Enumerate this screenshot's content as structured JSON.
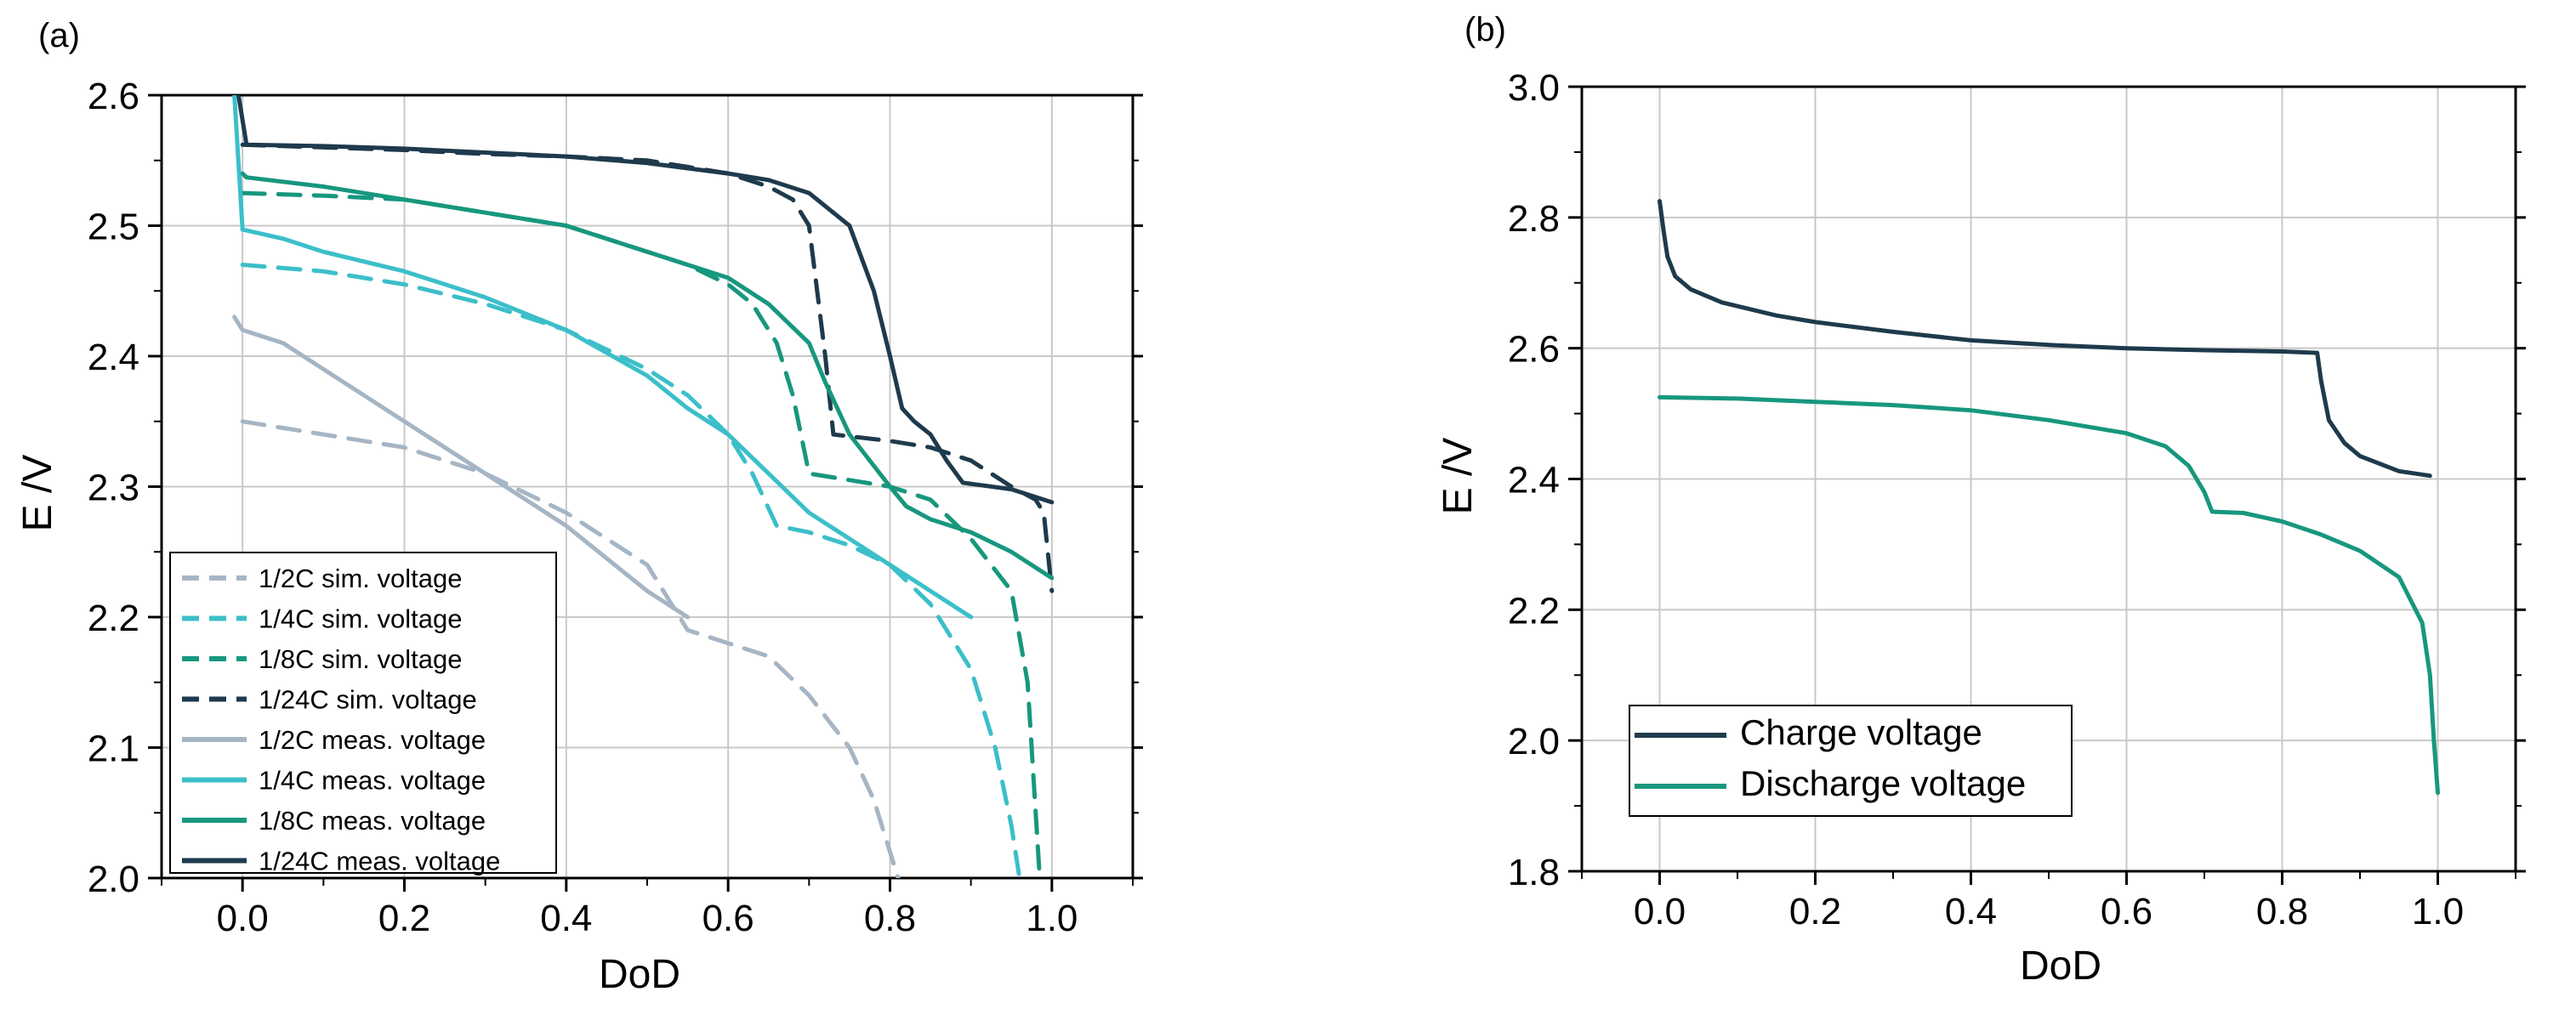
{
  "chart_data": [
    {
      "type": "line",
      "panel_label": "(a)",
      "xlabel": "DoD",
      "ylabel": "E /V",
      "xlim": [
        -0.1,
        1.1
      ],
      "ylim": [
        2.0,
        2.6
      ],
      "xticks": [
        0.0,
        0.2,
        0.4,
        0.6,
        0.8,
        1.0
      ],
      "xtick_labels": [
        "0.0",
        "0.2",
        "0.4",
        "0.6",
        "0.8",
        "1.0"
      ],
      "yticks": [
        2.0,
        2.1,
        2.2,
        2.3,
        2.4,
        2.5,
        2.6
      ],
      "ytick_labels": [
        "2.0",
        "2.1",
        "2.2",
        "2.3",
        "2.4",
        "2.5",
        "2.6"
      ],
      "grid": true,
      "legend_position": "bottom-left",
      "series": [
        {
          "name": "1/2C sim. voltage",
          "color": "#a6b5c4",
          "dash": true,
          "points": [
            [
              0.0,
              2.35
            ],
            [
              0.1,
              2.34
            ],
            [
              0.2,
              2.33
            ],
            [
              0.3,
              2.31
            ],
            [
              0.4,
              2.28
            ],
            [
              0.5,
              2.24
            ],
            [
              0.55,
              2.19
            ],
            [
              0.6,
              2.18
            ],
            [
              0.65,
              2.17
            ],
            [
              0.7,
              2.14
            ],
            [
              0.75,
              2.1
            ],
            [
              0.78,
              2.06
            ],
            [
              0.8,
              2.02
            ],
            [
              0.81,
              2.0
            ]
          ]
        },
        {
          "name": "1/4C sim. voltage",
          "color": "#3bbfc9",
          "dash": true,
          "points": [
            [
              0.0,
              2.47
            ],
            [
              0.1,
              2.465
            ],
            [
              0.2,
              2.455
            ],
            [
              0.3,
              2.44
            ],
            [
              0.4,
              2.42
            ],
            [
              0.5,
              2.39
            ],
            [
              0.55,
              2.37
            ],
            [
              0.6,
              2.34
            ],
            [
              0.63,
              2.31
            ],
            [
              0.66,
              2.27
            ],
            [
              0.7,
              2.265
            ],
            [
              0.75,
              2.255
            ],
            [
              0.8,
              2.24
            ],
            [
              0.85,
              2.21
            ],
            [
              0.9,
              2.16
            ],
            [
              0.93,
              2.1
            ],
            [
              0.95,
              2.04
            ],
            [
              0.96,
              2.0
            ]
          ]
        },
        {
          "name": "1/8C sim. voltage",
          "color": "#17977e",
          "dash": true,
          "points": [
            [
              0.0,
              2.525
            ],
            [
              0.1,
              2.523
            ],
            [
              0.2,
              2.52
            ],
            [
              0.3,
              2.51
            ],
            [
              0.4,
              2.5
            ],
            [
              0.5,
              2.48
            ],
            [
              0.55,
              2.47
            ],
            [
              0.6,
              2.455
            ],
            [
              0.63,
              2.44
            ],
            [
              0.66,
              2.41
            ],
            [
              0.68,
              2.37
            ],
            [
              0.7,
              2.31
            ],
            [
              0.75,
              2.305
            ],
            [
              0.8,
              2.3
            ],
            [
              0.85,
              2.29
            ],
            [
              0.9,
              2.26
            ],
            [
              0.95,
              2.22
            ],
            [
              0.97,
              2.15
            ],
            [
              0.98,
              2.05
            ],
            [
              0.985,
              2.0
            ]
          ]
        },
        {
          "name": "1/24C sim. voltage",
          "color": "#1e3a4c",
          "dash": true,
          "points": [
            [
              0.0,
              2.562
            ],
            [
              0.1,
              2.56
            ],
            [
              0.2,
              2.558
            ],
            [
              0.3,
              2.555
            ],
            [
              0.4,
              2.553
            ],
            [
              0.5,
              2.55
            ],
            [
              0.55,
              2.545
            ],
            [
              0.6,
              2.54
            ],
            [
              0.65,
              2.53
            ],
            [
              0.68,
              2.52
            ],
            [
              0.7,
              2.5
            ],
            [
              0.72,
              2.4
            ],
            [
              0.73,
              2.34
            ],
            [
              0.8,
              2.335
            ],
            [
              0.85,
              2.33
            ],
            [
              0.9,
              2.32
            ],
            [
              0.95,
              2.3
            ],
            [
              0.98,
              2.29
            ],
            [
              0.99,
              2.28
            ],
            [
              1.0,
              2.22
            ]
          ]
        },
        {
          "name": "1/2C meas. voltage",
          "color": "#a6b5c4",
          "dash": false,
          "points": [
            [
              -0.01,
              2.43
            ],
            [
              0.0,
              2.42
            ],
            [
              0.05,
              2.41
            ],
            [
              0.1,
              2.39
            ],
            [
              0.2,
              2.35
            ],
            [
              0.3,
              2.31
            ],
            [
              0.4,
              2.27
            ],
            [
              0.5,
              2.22
            ],
            [
              0.55,
              2.2
            ]
          ]
        },
        {
          "name": "1/4C meas. voltage",
          "color": "#3bbfc9",
          "dash": false,
          "points": [
            [
              -0.01,
              2.6
            ],
            [
              0.0,
              2.497
            ],
            [
              0.05,
              2.49
            ],
            [
              0.1,
              2.48
            ],
            [
              0.2,
              2.465
            ],
            [
              0.3,
              2.445
            ],
            [
              0.4,
              2.42
            ],
            [
              0.5,
              2.385
            ],
            [
              0.55,
              2.36
            ],
            [
              0.6,
              2.34
            ],
            [
              0.65,
              2.31
            ],
            [
              0.7,
              2.28
            ],
            [
              0.75,
              2.26
            ],
            [
              0.8,
              2.24
            ],
            [
              0.85,
              2.22
            ],
            [
              0.9,
              2.2
            ]
          ]
        },
        {
          "name": "1/8C meas. voltage",
          "color": "#17977e",
          "dash": false,
          "points": [
            [
              0.0,
              2.54
            ],
            [
              0.005,
              2.537
            ],
            [
              0.1,
              2.53
            ],
            [
              0.2,
              2.52
            ],
            [
              0.3,
              2.51
            ],
            [
              0.4,
              2.5
            ],
            [
              0.5,
              2.48
            ],
            [
              0.6,
              2.46
            ],
            [
              0.65,
              2.44
            ],
            [
              0.7,
              2.41
            ],
            [
              0.72,
              2.38
            ],
            [
              0.75,
              2.34
            ],
            [
              0.8,
              2.3
            ],
            [
              0.82,
              2.285
            ],
            [
              0.85,
              2.275
            ],
            [
              0.9,
              2.265
            ],
            [
              0.95,
              2.25
            ],
            [
              1.0,
              2.23
            ]
          ]
        },
        {
          "name": "1/24C meas. voltage",
          "color": "#1e3a4c",
          "dash": false,
          "points": [
            [
              -0.005,
              2.6
            ],
            [
              0.005,
              2.562
            ],
            [
              0.1,
              2.561
            ],
            [
              0.2,
              2.559
            ],
            [
              0.3,
              2.556
            ],
            [
              0.4,
              2.553
            ],
            [
              0.5,
              2.548
            ],
            [
              0.6,
              2.54
            ],
            [
              0.65,
              2.535
            ],
            [
              0.7,
              2.525
            ],
            [
              0.75,
              2.5
            ],
            [
              0.78,
              2.45
            ],
            [
              0.8,
              2.4
            ],
            [
              0.815,
              2.36
            ],
            [
              0.83,
              2.35
            ],
            [
              0.85,
              2.34
            ],
            [
              0.87,
              2.32
            ],
            [
              0.89,
              2.303
            ],
            [
              0.95,
              2.298
            ],
            [
              1.0,
              2.288
            ]
          ]
        }
      ]
    },
    {
      "type": "line",
      "panel_label": "(b)",
      "xlabel": "DoD",
      "ylabel": "E /V",
      "xlim": [
        -0.1,
        1.1
      ],
      "ylim": [
        1.8,
        3.0
      ],
      "xticks": [
        0.0,
        0.2,
        0.4,
        0.6,
        0.8,
        1.0
      ],
      "xtick_labels": [
        "0.0",
        "0.2",
        "0.4",
        "0.6",
        "0.8",
        "1.0"
      ],
      "yticks": [
        1.8,
        2.0,
        2.2,
        2.4,
        2.6,
        2.8,
        3.0
      ],
      "ytick_labels": [
        "1.8",
        "2.0",
        "2.2",
        "2.4",
        "2.6",
        "2.8",
        "3.0"
      ],
      "grid": true,
      "legend_position": "bottom-left",
      "series": [
        {
          "name": "Charge voltage",
          "color": "#1e3a4c",
          "dash": false,
          "points": [
            [
              0.0,
              2.825
            ],
            [
              0.005,
              2.78
            ],
            [
              0.01,
              2.74
            ],
            [
              0.02,
              2.71
            ],
            [
              0.04,
              2.69
            ],
            [
              0.08,
              2.67
            ],
            [
              0.15,
              2.65
            ],
            [
              0.2,
              2.64
            ],
            [
              0.3,
              2.625
            ],
            [
              0.4,
              2.612
            ],
            [
              0.5,
              2.605
            ],
            [
              0.6,
              2.6
            ],
            [
              0.7,
              2.597
            ],
            [
              0.8,
              2.595
            ],
            [
              0.845,
              2.593
            ],
            [
              0.85,
              2.55
            ],
            [
              0.86,
              2.49
            ],
            [
              0.88,
              2.455
            ],
            [
              0.9,
              2.435
            ],
            [
              0.95,
              2.412
            ],
            [
              0.99,
              2.405
            ]
          ]
        },
        {
          "name": "Discharge voltage",
          "color": "#17977e",
          "dash": false,
          "points": [
            [
              0.0,
              2.525
            ],
            [
              0.1,
              2.523
            ],
            [
              0.2,
              2.518
            ],
            [
              0.3,
              2.513
            ],
            [
              0.4,
              2.505
            ],
            [
              0.5,
              2.49
            ],
            [
              0.6,
              2.47
            ],
            [
              0.65,
              2.45
            ],
            [
              0.68,
              2.42
            ],
            [
              0.7,
              2.38
            ],
            [
              0.71,
              2.35
            ],
            [
              0.75,
              2.348
            ],
            [
              0.8,
              2.335
            ],
            [
              0.85,
              2.315
            ],
            [
              0.9,
              2.29
            ],
            [
              0.95,
              2.25
            ],
            [
              0.98,
              2.18
            ],
            [
              0.99,
              2.1
            ],
            [
              0.995,
              2.0
            ],
            [
              1.0,
              1.92
            ]
          ]
        }
      ]
    }
  ]
}
